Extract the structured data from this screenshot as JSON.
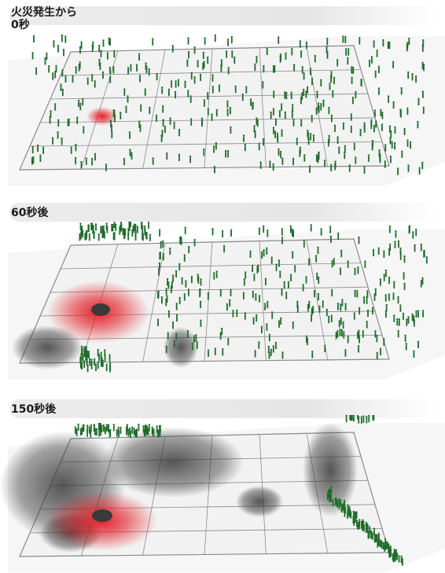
{
  "panels": [
    {
      "label_line1": "火災発生から",
      "label_line2": "0秒"
    },
    {
      "label_line1": "60秒後"
    },
    {
      "label_line1": "150秒後"
    }
  ],
  "colors": {
    "floor": "#f2f2f2",
    "walls": "#8a8a8a",
    "people": "#1e6b2a",
    "fire": "#e31b23",
    "smoke": "#3a3a3a",
    "banner": "#e8e8e8"
  }
}
